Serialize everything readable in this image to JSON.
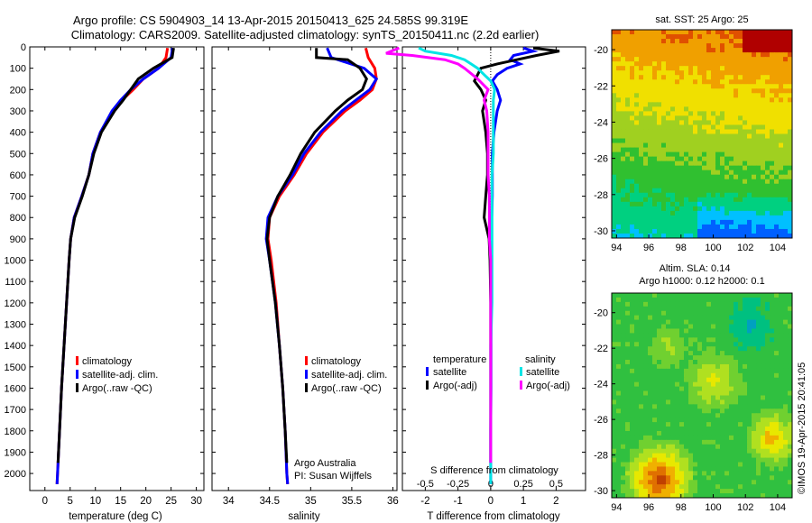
{
  "header": {
    "title_line1": "Argo profile: CS 5904903_14 13-Apr-2015 20150413_625 24.585S 99.319E",
    "title_line2": "Climatology: CARS2009. Satellite-adjusted climatology: synTS_20150411.nc (2.2d earlier)"
  },
  "credit": "©IMOS 19-Apr-2015 20:41:05",
  "colors": {
    "red": "#ff0000",
    "blue": "#0000ff",
    "black": "#000000",
    "cyan": "#00e5e5",
    "magenta": "#ff00ff"
  },
  "chart_data": [
    {
      "type": "line",
      "panel": "temperature",
      "xlabel": "temperature (deg C)",
      "xticks": [
        0,
        5,
        10,
        15,
        20,
        25,
        30
      ],
      "xlim": [
        -3,
        31.5
      ],
      "ylim": [
        0,
        2080
      ],
      "yticks": [
        0,
        100,
        200,
        300,
        400,
        500,
        600,
        700,
        800,
        900,
        1000,
        1100,
        1200,
        1300,
        1400,
        1500,
        1600,
        1700,
        1800,
        1900,
        2000
      ],
      "legend": [
        "climatology",
        "satellite-adj. clim.",
        "Argo(..raw -QC)"
      ],
      "series": [
        {
          "name": "climatology",
          "color": "red",
          "depth": [
            5,
            50,
            100,
            150,
            200,
            250,
            300,
            400,
            500,
            600,
            700,
            800,
            900,
            1000,
            1200,
            1400,
            1600,
            1800,
            2000,
            2050
          ],
          "values": [
            24.3,
            24,
            22.5,
            19.5,
            17.5,
            15.3,
            13.5,
            11,
            9.5,
            8.7,
            7.3,
            5.8,
            5.1,
            4.8,
            4.3,
            3.8,
            3.3,
            2.9,
            2.5,
            2.4
          ]
        },
        {
          "name": "satellite-adj. clim.",
          "color": "blue",
          "depth": [
            5,
            50,
            100,
            150,
            200,
            250,
            300,
            400,
            500,
            600,
            700,
            800,
            900,
            1000,
            1200,
            1400,
            1600,
            1800,
            2000,
            2050
          ],
          "values": [
            25.3,
            25,
            22.5,
            19.5,
            17,
            15,
            13.3,
            11,
            9.5,
            8.7,
            7.3,
            5.8,
            5.1,
            4.8,
            4.3,
            3.8,
            3.3,
            2.9,
            2.5,
            2.4
          ]
        },
        {
          "name": "Argo(..raw -QC)",
          "color": "black",
          "depth": [
            5,
            50,
            100,
            150,
            200,
            250,
            300,
            400,
            500,
            600,
            700,
            800,
            900,
            1000,
            1200,
            1400,
            1600,
            1800,
            1950
          ],
          "values": [
            25.5,
            25.2,
            21.5,
            18.5,
            17,
            15.5,
            13.8,
            11.2,
            9.7,
            8.7,
            7.4,
            5.9,
            5.1,
            4.8,
            4.3,
            3.8,
            3.3,
            2.9,
            2.6
          ]
        }
      ]
    },
    {
      "type": "line",
      "panel": "salinity",
      "xlabel": "salinity",
      "xticks": [
        34,
        34.5,
        35,
        35.5,
        36
      ],
      "xtick_labels": [
        "34",
        "34.5",
        "35",
        "35.5",
        "36"
      ],
      "xlim": [
        33.8,
        36.05
      ],
      "ylim": [
        0,
        2080
      ],
      "legend": [
        "climatology",
        "satellite-adj. clim.",
        "Argo(..raw -QC)"
      ],
      "annotation_line1": "Argo Australia",
      "annotation_line2": "PI: Susan Wijffels",
      "series": [
        {
          "name": "climatology",
          "color": "red",
          "depth": [
            5,
            50,
            100,
            150,
            200,
            250,
            300,
            400,
            500,
            600,
            700,
            800,
            900,
            1000,
            1200,
            1400,
            1600,
            1800,
            2000,
            2050
          ],
          "values": [
            35.67,
            35.7,
            35.78,
            35.8,
            35.75,
            35.6,
            35.42,
            35.15,
            34.95,
            34.8,
            34.62,
            34.5,
            34.48,
            34.52,
            34.58,
            34.62,
            34.66,
            34.69,
            34.71,
            34.72
          ]
        },
        {
          "name": "satellite-adj. clim.",
          "color": "blue",
          "depth": [
            5,
            50,
            100,
            150,
            200,
            250,
            300,
            400,
            500,
            600,
            700,
            800,
            900,
            1000,
            1200,
            1400,
            1600,
            1800,
            2000,
            2050
          ],
          "values": [
            35.2,
            35.25,
            35.65,
            35.8,
            35.72,
            35.55,
            35.38,
            35.12,
            34.92,
            34.78,
            34.6,
            34.48,
            34.46,
            34.5,
            34.57,
            34.62,
            34.66,
            34.69,
            34.71,
            34.72
          ]
        },
        {
          "name": "Argo(..raw -QC)",
          "color": "black",
          "depth": [
            5,
            50,
            60,
            100,
            150,
            200,
            250,
            300,
            400,
            500,
            600,
            700,
            800,
            900,
            1000,
            1200,
            1400,
            1600,
            1800,
            1950
          ],
          "values": [
            35.07,
            35.07,
            35.45,
            35.6,
            35.68,
            35.63,
            35.45,
            35.3,
            35.05,
            34.88,
            34.75,
            34.6,
            34.5,
            34.47,
            34.5,
            34.57,
            34.62,
            34.66,
            34.69,
            34.71
          ]
        }
      ]
    },
    {
      "type": "line",
      "panel": "difference",
      "xlabel": "T difference from climatology",
      "xlabel_top": "S difference from climatology",
      "xticks_T": [
        -2,
        -1,
        0,
        1,
        2
      ],
      "xticks_S": [
        -0.5,
        -0.25,
        0,
        0.25,
        0.5
      ],
      "xtick_labels_S": [
        "-0.5",
        "-0.25",
        "0",
        "0.25",
        "0.5"
      ],
      "xlim_T": [
        -2.7,
        2.9
      ],
      "ylim": [
        0,
        2080
      ],
      "legend_header_temperature": "temperature",
      "legend_header_salinity": "salinity",
      "legend": [
        "satellite",
        "Argo(-adj)",
        "satellite",
        "Argo(-adj)"
      ],
      "series": [
        {
          "name": "satellite",
          "group": "temperature",
          "color": "blue",
          "depth": [
            5,
            20,
            40,
            60,
            80,
            100,
            130,
            160,
            200,
            250,
            300,
            400,
            500,
            600,
            700,
            800,
            900,
            1000,
            1200,
            1400,
            1600,
            1800,
            2000,
            2050
          ],
          "values": [
            1.0,
            1.3,
            0.7,
            0.6,
            0.9,
            0.5,
            0.2,
            0.05,
            0.2,
            0.3,
            0.2,
            0.1,
            0.05,
            0.05,
            0.05,
            0.03,
            0.02,
            0.02,
            0.01,
            0.01,
            0.01,
            0,
            0,
            0
          ]
        },
        {
          "name": "Argo(-adj)",
          "group": "temperature",
          "color": "black",
          "depth": [
            5,
            20,
            40,
            60,
            80,
            100,
            130,
            160,
            200,
            250,
            300,
            350,
            400,
            500,
            600,
            700,
            800,
            900,
            1000,
            1200,
            1400,
            1600,
            1800,
            1950
          ],
          "values": [
            1.3,
            2.1,
            1.4,
            0.8,
            0.2,
            -0.3,
            -0.4,
            -0.5,
            -0.3,
            -0.15,
            -0.25,
            -0.2,
            -0.15,
            -0.1,
            -0.1,
            -0.15,
            -0.2,
            -0.05,
            -0.02,
            0,
            0,
            0,
            0,
            0
          ]
        },
        {
          "name": "satellite",
          "group": "salinity",
          "color": "cyan",
          "depth": [
            5,
            20,
            40,
            60,
            80,
            100,
            130,
            160,
            200,
            250,
            300,
            400,
            500,
            600,
            700,
            800,
            900,
            1000,
            1200,
            1400,
            1600,
            1800,
            2000,
            2050
          ],
          "values": [
            -0.55,
            -0.5,
            -0.3,
            -0.2,
            -0.15,
            -0.1,
            -0.05,
            0,
            0.03,
            0.02,
            0.02,
            0.02,
            0.02,
            0.01,
            0.01,
            0.01,
            0.01,
            0.01,
            0.01,
            0,
            0,
            0,
            0,
            0
          ]
        },
        {
          "name": "Argo(-adj)",
          "group": "salinity",
          "color": "magenta",
          "depth": [
            5,
            30,
            40,
            60,
            80,
            100,
            150,
            200,
            250,
            300,
            400,
            500,
            600,
            700,
            800,
            900,
            1000,
            1200,
            1400,
            1600,
            1800,
            1950
          ],
          "values": [
            -0.7,
            -0.8,
            -0.6,
            -0.35,
            -0.25,
            -0.2,
            -0.1,
            -0.02,
            -0.05,
            -0.03,
            -0.02,
            -0.02,
            -0.02,
            -0.01,
            -0.01,
            -0.01,
            0,
            0,
            0,
            0,
            0,
            0
          ]
        }
      ]
    },
    {
      "type": "heatmap",
      "panel": "sst_map",
      "title": "sat. SST: 25 Argo: 25",
      "xticks": [
        94,
        96,
        98,
        100,
        102,
        104
      ],
      "yticks": [
        -20,
        -22,
        -24,
        -26,
        -28,
        -30
      ],
      "xlim": [
        93.7,
        104.9
      ],
      "ylim": [
        -30.4,
        -18.9
      ],
      "palette": [
        "#0060ff",
        "#00c0ff",
        "#00d080",
        "#30c030",
        "#a0d020",
        "#f0e000",
        "#f0a000",
        "#e05000",
        "#b00000"
      ]
    },
    {
      "type": "heatmap",
      "panel": "sla_map",
      "title_line1": "Altim. SLA: 0.14",
      "title_line2": "Argo h1000: 0.12 h2000: 0.1",
      "xticks": [
        94,
        96,
        98,
        100,
        102,
        104
      ],
      "yticks": [
        -20,
        -22,
        -24,
        -26,
        -28,
        -30
      ],
      "xlim": [
        93.7,
        104.9
      ],
      "ylim": [
        -30.4,
        -18.9
      ],
      "palette": [
        "#00a0c0",
        "#00c080",
        "#30c040",
        "#70d030",
        "#b0e020",
        "#e8e800",
        "#f0b000",
        "#e07000",
        "#c04000"
      ]
    }
  ]
}
